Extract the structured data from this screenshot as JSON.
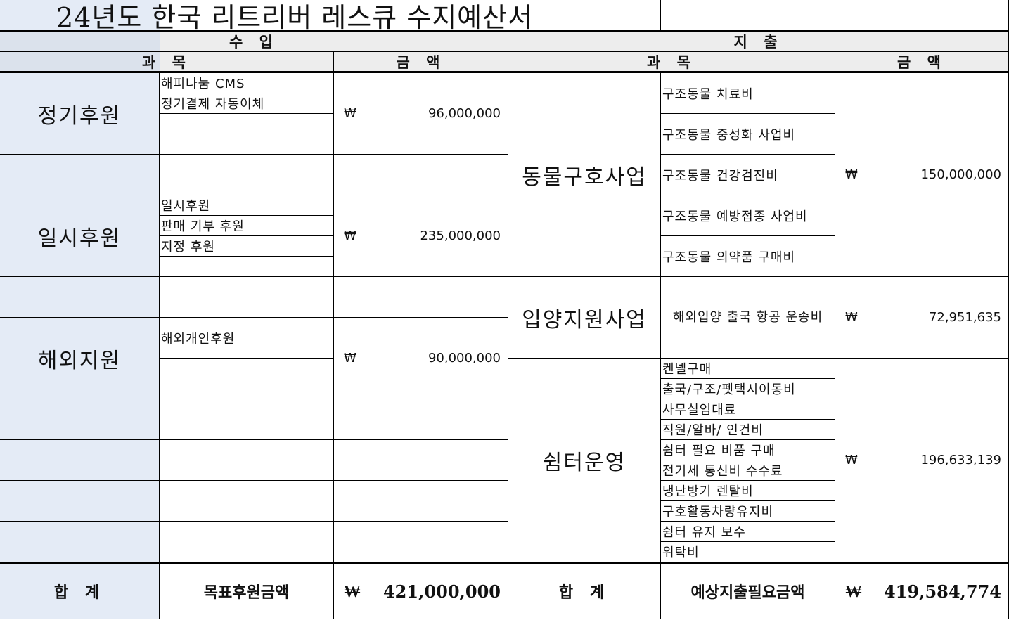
{
  "title": "24년도 한국 리트리버 레스큐 수지예산서",
  "header": {
    "income": "수 입",
    "expense": "지 출",
    "subject": "과 목",
    "amount": "금 액"
  },
  "currency": "₩",
  "income": {
    "groups": [
      {
        "category": "정기후원",
        "items": [
          "해피나눔 CMS",
          "정기결제 자동이체"
        ],
        "amount": "96,000,000"
      },
      {
        "category": "일시후원",
        "items": [
          "일시후원",
          "판매 기부 후원",
          "지정 후원"
        ],
        "amount": "235,000,000"
      },
      {
        "category": "해외지원",
        "items": [
          "해외개인후원"
        ],
        "amount": "90,000,000"
      }
    ],
    "total_label": "합 계",
    "total_item": "목표후원금액",
    "total_amount": "421,000,000"
  },
  "expense": {
    "groups": [
      {
        "category": "동물구호사업",
        "items": [
          "구조동물 치료비",
          "구조동물 중성화 사업비",
          "구조동물 건강검진비",
          "구조동물 예방접종 사업비",
          "구조동물 의약품 구매비"
        ],
        "amount": "150,000,000"
      },
      {
        "category": "입양지원사업",
        "items": [
          "해외입양 출국 항공 운송비"
        ],
        "amount": "72,951,635"
      },
      {
        "category": "쉼터운영",
        "items": [
          "켄넬구매",
          "출국/구조/펫택시이동비",
          "사무실임대료",
          "직원/알바/ 인건비",
          "쉼터 필요 비품 구매",
          "전기세 통신비 수수료",
          "냉난방기 렌탈비",
          "구호활동차량유지비",
          "쉼터 유지 보수",
          "위탁비"
        ],
        "amount": "196,633,139"
      }
    ],
    "total_label": "합 계",
    "total_item": "예상지출필요금액",
    "total_amount": "419,584,774"
  },
  "colors": {
    "category_bg": "#e4ebf6",
    "header_bg": "#ededed"
  }
}
